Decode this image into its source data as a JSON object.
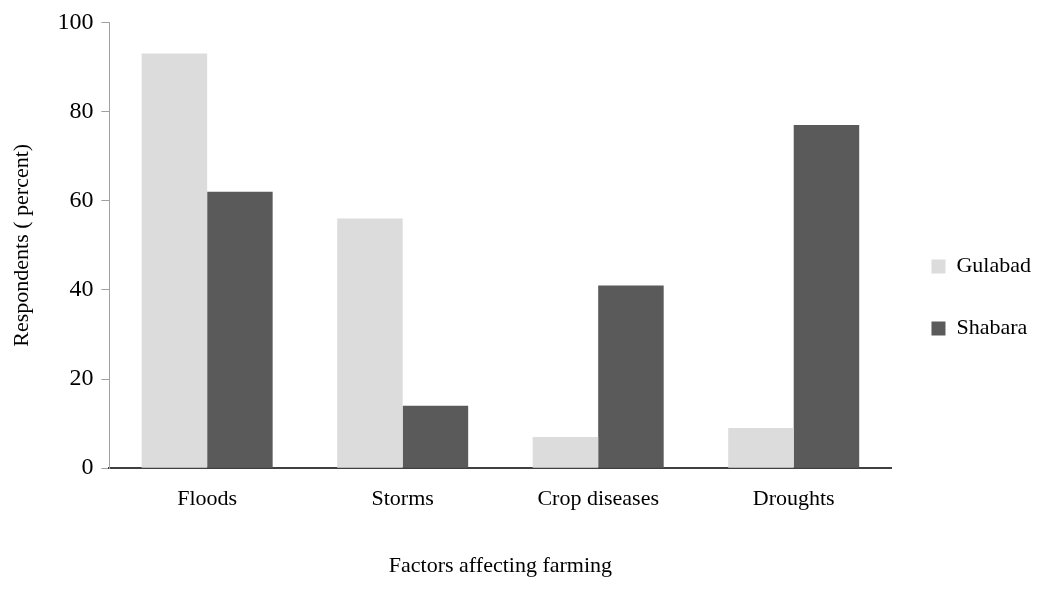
{
  "chart_data": {
    "type": "bar",
    "xlabel": "Factors affecting farming",
    "ylabel": "Respondents ( percent)",
    "categories": [
      "Floods",
      "Storms",
      "Crop diseases",
      "Droughts"
    ],
    "series": [
      {
        "name": "Gulabad",
        "color": "#dcdcdc",
        "values": [
          93,
          56,
          7,
          9
        ]
      },
      {
        "name": "Shabara",
        "color": "#5a5a5a",
        "values": [
          62,
          14,
          41,
          77
        ]
      }
    ],
    "ylim": [
      0,
      100
    ],
    "yticks": [
      0,
      20,
      40,
      60,
      80,
      100
    ],
    "grid": false,
    "legend": "right"
  }
}
